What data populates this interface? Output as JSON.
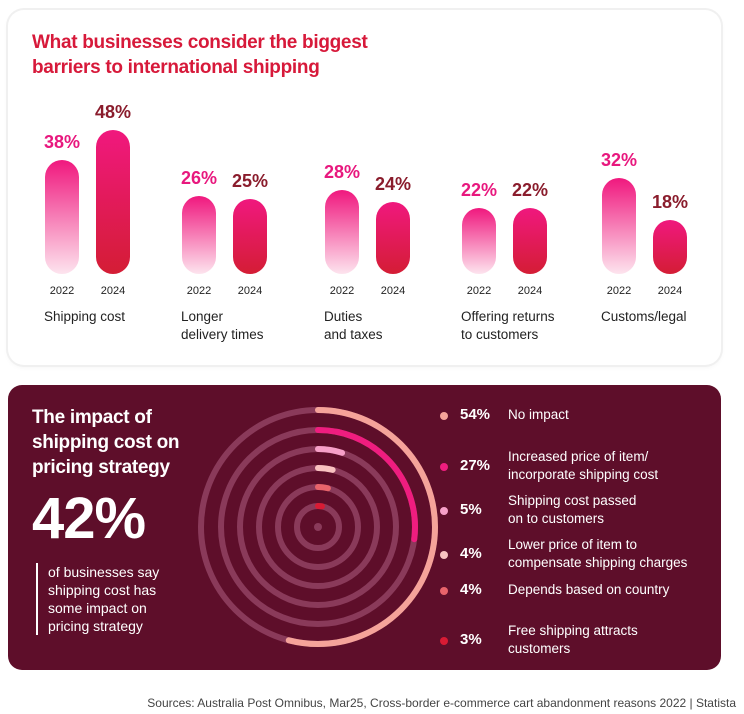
{
  "top": {
    "title": "What businesses consider the biggest barriers to international shipping"
  },
  "chart_data": [
    {
      "type": "bar",
      "title": "What businesses consider the biggest barriers to international shipping",
      "categories": [
        "Shipping cost",
        "Longer\ndelivery times",
        "Duties\nand taxes",
        "Offering returns\nto customers",
        "Customs/legal"
      ],
      "series": [
        {
          "name": "2022",
          "values": [
            38,
            26,
            28,
            22,
            32
          ]
        },
        {
          "name": "2024",
          "values": [
            48,
            25,
            24,
            22,
            18
          ]
        }
      ],
      "colors": {
        "2022_top": "#f0187e",
        "2022_bottom": "#fde0ec",
        "2024_top": "#f0187e",
        "2024_bottom": "#d41d35",
        "label_2022": "#e8187e",
        "label_2024": "#8a1c2c"
      }
    },
    {
      "type": "pie",
      "title": "The impact of shipping cost on pricing strategy",
      "categories": [
        "No impact",
        "Increased price of item/\nincorporate shipping cost",
        "Shipping cost passed\non to customers",
        "Lower price of item to\ncompensate shipping charges",
        "Depends based on country",
        "Free shipping attracts\ncustomers"
      ],
      "values": [
        54,
        27,
        5,
        4,
        4,
        3
      ],
      "colors": [
        "#f5a39a",
        "#ef1d7f",
        "#f7a0c8",
        "#f9c2c0",
        "#e8646b",
        "#d81b34"
      ]
    }
  ],
  "impact": {
    "title": "The impact of shipping cost on pricing strategy",
    "headline": "42%",
    "description": "of businesses say shipping cost has some impact on pricing strategy"
  },
  "legend": [
    {
      "pct": "54%",
      "label": "No impact",
      "color": "#f5a39a"
    },
    {
      "pct": "27%",
      "label": "Increased price of item/\nincorporate shipping cost",
      "color": "#ef1d7f"
    },
    {
      "pct": "5%",
      "label": "Shipping cost passed\non to customers",
      "color": "#f7a0c8"
    },
    {
      "pct": "4%",
      "label": "Lower price of item to\ncompensate shipping charges",
      "color": "#f9c2c0"
    },
    {
      "pct": "4%",
      "label": "Depends based on country",
      "color": "#e8646b"
    },
    {
      "pct": "3%",
      "label": "Free shipping attracts\ncustomers",
      "color": "#d81b34"
    }
  ],
  "source": "Sources: Australia Post Omnibus, Mar25, Cross-border e-commerce cart abandonment reasons 2022 | Statista"
}
